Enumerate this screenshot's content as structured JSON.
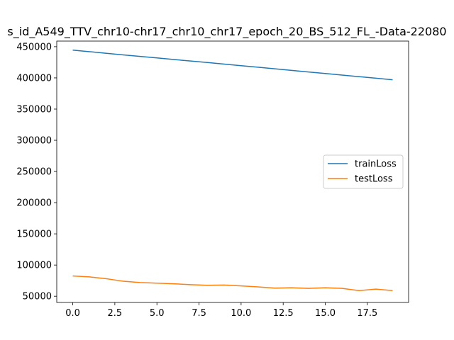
{
  "chart_data": {
    "type": "line",
    "title": "s_id_A549_TTV_chr10-chr17_chr10_chr17_epoch_20_BS_512_FL_-Data-22080",
    "xlabel": "",
    "ylabel": "",
    "xlim": [
      -0.95,
      19.95
    ],
    "ylim": [
      40000,
      459000
    ],
    "x_ticks": [
      0.0,
      2.5,
      5.0,
      7.5,
      10.0,
      12.5,
      15.0,
      17.5
    ],
    "x_tick_labels": [
      "0.0",
      "2.5",
      "5.0",
      "7.5",
      "10.0",
      "12.5",
      "15.0",
      "17.5"
    ],
    "y_ticks": [
      50000,
      100000,
      150000,
      200000,
      250000,
      300000,
      350000,
      400000,
      450000
    ],
    "y_tick_labels": [
      "50000",
      "100000",
      "150000",
      "200000",
      "250000",
      "300000",
      "350000",
      "400000",
      "450000"
    ],
    "grid": false,
    "legend_position": "center-right",
    "x": [
      0,
      1,
      2,
      3,
      4,
      5,
      6,
      7,
      8,
      9,
      10,
      11,
      12,
      13,
      14,
      15,
      16,
      17,
      18,
      19
    ],
    "series": [
      {
        "name": "trainLoss",
        "color": "#1f77b4",
        "values": [
          444500,
          442000,
          439400,
          436900,
          434400,
          432000,
          429500,
          427000,
          424600,
          422100,
          419600,
          417100,
          414600,
          412000,
          409500,
          407000,
          404500,
          402000,
          399500,
          397000
        ]
      },
      {
        "name": "testLoss",
        "color": "#ff7f0e",
        "values": [
          82500,
          81000,
          78000,
          74000,
          72000,
          71000,
          70000,
          68500,
          67500,
          68000,
          66500,
          65000,
          63000,
          63500,
          62500,
          63500,
          62500,
          59000,
          61500,
          59000
        ]
      }
    ]
  }
}
